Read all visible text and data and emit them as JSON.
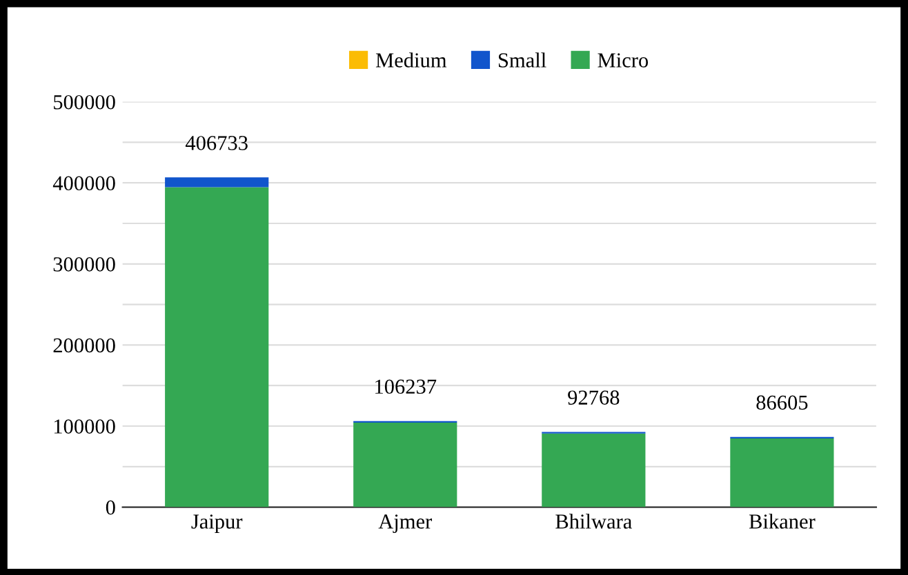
{
  "chart_data": {
    "type": "bar",
    "stacked": true,
    "categories": [
      "Jaipur",
      "Ajmer",
      "Bhilwara",
      "Bikaner"
    ],
    "series": [
      {
        "name": "Micro",
        "color": "#34a853",
        "values": [
          394733,
          104237,
          90768,
          84605
        ]
      },
      {
        "name": "Small",
        "color": "#1155cc",
        "values": [
          12000,
          2000,
          2000,
          2000
        ]
      },
      {
        "name": "Medium",
        "color": "#fbbc04",
        "values": [
          0,
          0,
          0,
          0
        ]
      }
    ],
    "totals": [
      "406733",
      "106237",
      "92768",
      "86605"
    ],
    "ylim": [
      0,
      500000
    ],
    "yticks": [
      0,
      {
        "value": 50000,
        "label": null
      },
      100000,
      {
        "value": 150000,
        "label": null
      },
      200000,
      {
        "value": 250000,
        "label": null
      },
      300000,
      {
        "value": 350000,
        "label": null
      },
      400000,
      {
        "value": 450000,
        "label": null
      },
      500000
    ],
    "grid": "y",
    "legend": "top"
  }
}
